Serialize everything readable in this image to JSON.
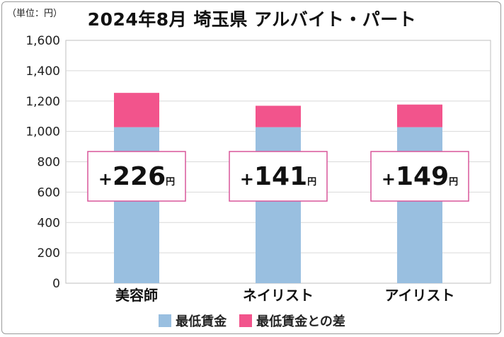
{
  "header": {
    "unit_label": "（単位：円）",
    "title": "2024年8月 埼玉県 アルバイト・パート"
  },
  "colors": {
    "base": "#99bfe0",
    "diff": "#f2548c",
    "callout_border": "#d9579a",
    "grid": "#d9d9d9"
  },
  "chart_data": {
    "type": "bar",
    "stacked": true,
    "categories": [
      "美容師",
      "ネイリスト",
      "アイリスト"
    ],
    "series": [
      {
        "name": "最低賃金",
        "values": [
          1028,
          1028,
          1028
        ]
      },
      {
        "name": "最低賃金との差",
        "values": [
          226,
          141,
          149
        ]
      }
    ],
    "ylim": [
      0,
      1600
    ],
    "yticks": [
      0,
      200,
      400,
      600,
      800,
      1000,
      1200,
      1400,
      1600
    ],
    "ytick_labels": [
      "0",
      "200",
      "400",
      "600",
      "800",
      "1,000",
      "1,200",
      "1,400",
      "1,600"
    ],
    "grid": true,
    "legend_position": "bottom",
    "annotations": [
      {
        "sign": "+",
        "value": "226",
        "unit": "円"
      },
      {
        "sign": "+",
        "value": "141",
        "unit": "円"
      },
      {
        "sign": "+",
        "value": "149",
        "unit": "円"
      }
    ]
  }
}
